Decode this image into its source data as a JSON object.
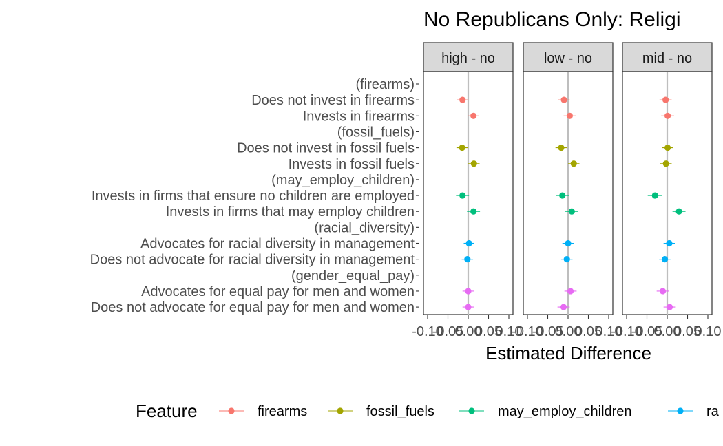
{
  "chart_data": {
    "type": "scatter",
    "title": "No Republicans Only: Religi",
    "xlabel": "Estimated Difference",
    "ylabel": "",
    "xlim": [
      -0.1,
      0.1
    ],
    "x_ticks": [
      -0.1,
      -0.05,
      0.0,
      0.05,
      0.1
    ],
    "x_tick_labels": [
      "-0.10",
      "-0.05",
      "0.00",
      "0.05",
      "0.10"
    ],
    "rows": [
      {
        "label": "(firearms)",
        "header": true
      },
      {
        "label": "Does not invest in firearms",
        "feature": "firearms"
      },
      {
        "label": "Invests in firearms",
        "feature": "firearms"
      },
      {
        "label": "(fossil_fuels)",
        "header": true
      },
      {
        "label": "Does not invest in fossil fuels",
        "feature": "fossil_fuels"
      },
      {
        "label": "Invests in fossil fuels",
        "feature": "fossil_fuels"
      },
      {
        "label": "(may_employ_children)",
        "header": true
      },
      {
        "label": "Invests in firms that ensure no children are employed",
        "feature": "may_employ_children"
      },
      {
        "label": "Invests in firms that may employ children",
        "feature": "may_employ_children"
      },
      {
        "label": "(racial_diversity)",
        "header": true
      },
      {
        "label": "Advocates for racial diversity in management",
        "feature": "racial_diversity"
      },
      {
        "label": "Does not advocate for racial diversity in management",
        "feature": "racial_diversity"
      },
      {
        "label": "(gender_equal_pay)",
        "header": true
      },
      {
        "label": "Advocates for equal pay for men and women",
        "feature": "gender_equal_pay"
      },
      {
        "label": "Does not advocate for equal pay for men and women",
        "feature": "gender_equal_pay"
      }
    ],
    "panels": [
      {
        "name": "high - no",
        "estimates": [
          null,
          -0.014,
          0.013,
          null,
          -0.015,
          0.014,
          null,
          -0.014,
          0.013,
          null,
          0.002,
          -0.002,
          null,
          0.0,
          0.0
        ],
        "lower": [
          null,
          -0.028,
          -0.001,
          null,
          -0.029,
          0.0,
          null,
          -0.03,
          -0.003,
          null,
          -0.011,
          -0.016,
          null,
          -0.014,
          -0.014
        ],
        "upper": [
          null,
          0.0,
          0.027,
          null,
          -0.001,
          0.028,
          null,
          0.002,
          0.029,
          null,
          0.015,
          0.012,
          null,
          0.014,
          0.014
        ]
      },
      {
        "name": "low - no",
        "estimates": [
          null,
          -0.01,
          0.004,
          null,
          -0.017,
          0.014,
          null,
          -0.014,
          0.009,
          null,
          0.0,
          -0.003,
          null,
          0.006,
          -0.011
        ],
        "lower": [
          null,
          -0.024,
          -0.011,
          null,
          -0.031,
          -0.0,
          null,
          -0.03,
          -0.007,
          null,
          -0.014,
          -0.017,
          null,
          -0.009,
          -0.026
        ],
        "upper": [
          null,
          0.004,
          0.019,
          null,
          -0.003,
          0.028,
          null,
          0.002,
          0.025,
          null,
          0.014,
          0.011,
          null,
          0.021,
          0.004
        ]
      },
      {
        "name": "mid - no",
        "estimates": [
          null,
          -0.004,
          0.001,
          null,
          0.001,
          -0.003,
          null,
          -0.03,
          0.029,
          null,
          0.005,
          -0.006,
          null,
          -0.011,
          0.006
        ],
        "lower": [
          null,
          -0.019,
          -0.015,
          null,
          -0.013,
          -0.017,
          null,
          -0.048,
          0.013,
          null,
          -0.009,
          -0.02,
          null,
          -0.026,
          -0.009
        ],
        "upper": [
          null,
          0.011,
          0.017,
          null,
          0.015,
          0.011,
          null,
          -0.012,
          0.045,
          null,
          0.019,
          0.008,
          null,
          0.004,
          0.021
        ]
      }
    ],
    "legend": {
      "title": "Feature",
      "position": "bottom",
      "entries": [
        {
          "name": "firearms",
          "color": "#F8766D"
        },
        {
          "name": "fossil_fuels",
          "color": "#A3A500"
        },
        {
          "name": "may_employ_children",
          "color": "#00BF7D"
        },
        {
          "name": "ra",
          "color": "#00B0F6"
        }
      ]
    },
    "feature_colors": {
      "firearms": "#F8766D",
      "fossil_fuels": "#A3A500",
      "may_employ_children": "#00BF7D",
      "racial_diversity": "#00B0F6",
      "gender_equal_pay": "#E76BF3"
    },
    "grid": false
  }
}
